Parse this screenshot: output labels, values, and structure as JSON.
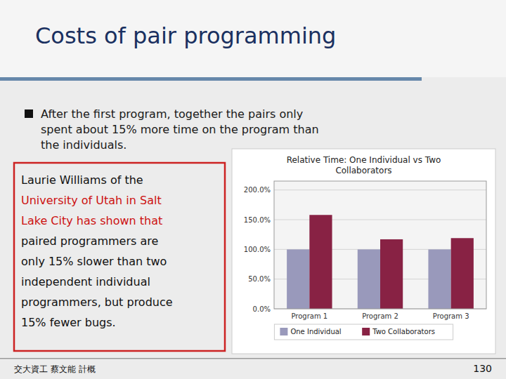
{
  "title": "Costs of pair programming",
  "bullets": [
    "After the first program, together the pairs only",
    "spent about 15% more time on the program than",
    "the individuals."
  ],
  "body_lines": [
    {
      "text": "Laurie Williams of the",
      "color": "#111111"
    },
    {
      "text": "University of Utah in Salt",
      "color": "#cc1111"
    },
    {
      "text": "Lake City has shown that",
      "color": "#cc1111"
    },
    {
      "text": "paired programmers are",
      "color": "#111111"
    },
    {
      "text": "only 15% slower than two",
      "color": "#111111"
    },
    {
      "text": "independent individual",
      "color": "#111111"
    },
    {
      "text": "programmers, but produce",
      "color": "#111111"
    },
    {
      "text": "15% fewer bugs.",
      "color": "#111111"
    }
  ],
  "footer_left": "交大資工 蔡文能 計概",
  "footer_right": "130",
  "chart_data": {
    "type": "bar",
    "title": "Relative Time:  One Individual vs Two\nCollaborators",
    "categories": [
      "Program 1",
      "Program 2",
      "Program 3"
    ],
    "series": [
      {
        "name": "One Individual",
        "color": "#9999bb",
        "values": [
          100.0,
          100.0,
          100.0
        ]
      },
      {
        "name": "Two Collaborators",
        "color": "#882244",
        "values": [
          158.0,
          117.0,
          119.0
        ]
      }
    ],
    "ylim": [
      0,
      215
    ],
    "yticks": [
      {
        "value": 0.0,
        "label": "0.0%"
      },
      {
        "value": 50.0,
        "label": "50.0%"
      },
      {
        "value": 100.0,
        "label": "100.0%"
      },
      {
        "value": 150.0,
        "label": "150.0%"
      },
      {
        "value": 200.0,
        "label": "200.0%"
      }
    ],
    "grid": true,
    "legend": "bottom"
  }
}
